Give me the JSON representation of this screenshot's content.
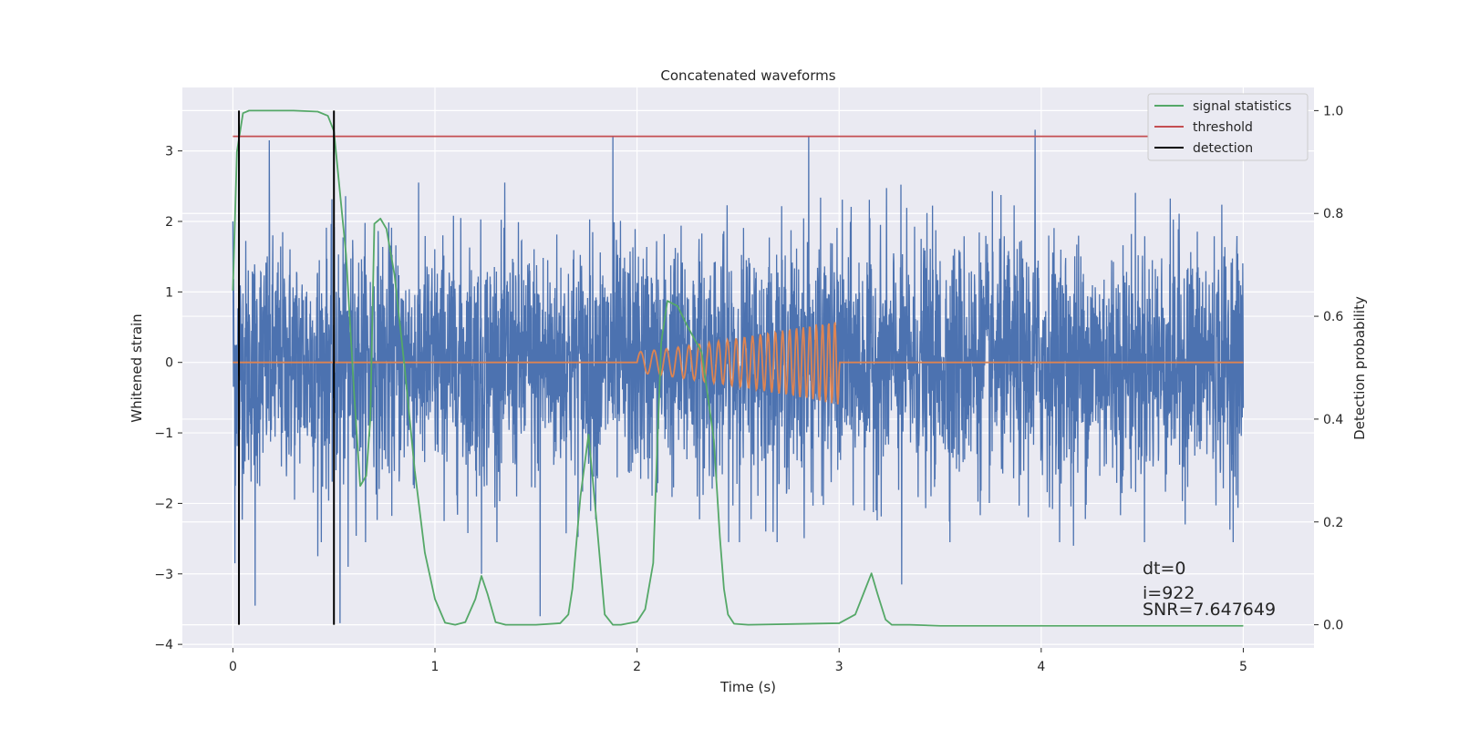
{
  "chart_data": {
    "type": "line",
    "title": "Concatenated waveforms",
    "xlabel": "Time (s)",
    "ylabel": "Whitened strain",
    "ylabel_right": "Detection probability",
    "xlim": [
      -0.25,
      5.35
    ],
    "ylim": [
      -4.05,
      3.9
    ],
    "ylim_right": [
      -0.045,
      1.045
    ],
    "x_ticks": [
      0,
      1,
      2,
      3,
      4,
      5
    ],
    "y_ticks": [
      -4,
      -3,
      -2,
      -1,
      0,
      1,
      2,
      3
    ],
    "y_ticks_right": [
      0.0,
      0.2,
      0.4,
      0.6,
      0.8,
      1.0
    ],
    "x_tick_labels": [
      "0",
      "1",
      "2",
      "3",
      "4",
      "5"
    ],
    "y_tick_labels": [
      "−4",
      "−3",
      "−2",
      "−1",
      "0",
      "1",
      "2",
      "3"
    ],
    "y_tick_labels_right": [
      "0.0",
      "0.2",
      "0.4",
      "0.6",
      "0.8",
      "1.0"
    ],
    "grid": true,
    "legend_position": "top-right",
    "colors": {
      "noise": "#4c72b0",
      "waveform": "#dd8452",
      "signal_statistics": "#55a868",
      "threshold": "#c44e52",
      "detection": "#000000",
      "background": "#eaeaf2"
    },
    "noise": {
      "x_range": [
        0,
        5
      ],
      "typical_amplitude": 1.0,
      "peaks": [
        {
          "x": 0.0,
          "y": 2.0
        },
        {
          "x": 0.01,
          "y": -2.85
        },
        {
          "x": 0.11,
          "y": -3.45
        },
        {
          "x": 0.18,
          "y": 3.15
        },
        {
          "x": 0.42,
          "y": -2.75
        },
        {
          "x": 0.53,
          "y": -3.7
        },
        {
          "x": 0.57,
          "y": -2.9
        },
        {
          "x": 1.23,
          "y": -3.0
        },
        {
          "x": 1.52,
          "y": -3.6
        },
        {
          "x": 1.88,
          "y": 3.2
        },
        {
          "x": 2.85,
          "y": 3.2
        },
        {
          "x": 3.31,
          "y": -3.15
        },
        {
          "x": 3.97,
          "y": 3.3
        },
        {
          "x": 4.16,
          "y": -2.6
        }
      ]
    },
    "waveform": {
      "x_range": [
        2.0,
        3.0
      ],
      "start_amplitude": 0.15,
      "end_amplitude": 0.6,
      "start_frequency_hz": 14,
      "end_frequency_hz": 34
    },
    "signal_statistics": {
      "x": [
        0.0,
        0.02,
        0.05,
        0.08,
        0.12,
        0.3,
        0.42,
        0.47,
        0.5,
        0.52,
        0.56,
        0.6,
        0.63,
        0.66,
        0.68,
        0.7,
        0.73,
        0.76,
        0.8,
        0.85,
        0.9,
        0.95,
        1.0,
        1.05,
        1.1,
        1.15,
        1.2,
        1.23,
        1.26,
        1.3,
        1.35,
        1.5,
        1.62,
        1.66,
        1.68,
        1.72,
        1.76,
        1.8,
        1.84,
        1.88,
        1.92,
        2.0,
        2.04,
        2.08,
        2.1,
        2.12,
        2.15,
        2.2,
        2.25,
        2.32,
        2.38,
        2.41,
        2.43,
        2.45,
        2.48,
        2.55,
        3.0,
        3.08,
        3.13,
        3.16,
        3.19,
        3.23,
        3.26,
        3.35,
        3.5,
        4.0,
        4.5,
        5.0
      ],
      "y": [
        0.65,
        0.92,
        0.995,
        1.0,
        1.0,
        1.0,
        0.998,
        0.99,
        0.96,
        0.88,
        0.72,
        0.45,
        0.27,
        0.29,
        0.4,
        0.78,
        0.79,
        0.77,
        0.68,
        0.5,
        0.3,
        0.14,
        0.05,
        0.004,
        0.0,
        0.005,
        0.05,
        0.095,
        0.06,
        0.005,
        0.0,
        0.0,
        0.003,
        0.02,
        0.07,
        0.25,
        0.37,
        0.2,
        0.02,
        0.0,
        0.0,
        0.006,
        0.03,
        0.12,
        0.35,
        0.55,
        0.63,
        0.62,
        0.58,
        0.53,
        0.36,
        0.17,
        0.07,
        0.02,
        0.002,
        0.0,
        0.003,
        0.02,
        0.07,
        0.1,
        0.06,
        0.01,
        0.0,
        0.0,
        -0.002,
        -0.002,
        -0.002,
        -0.002
      ]
    },
    "threshold": {
      "value": 0.95,
      "x_range": [
        0,
        5
      ]
    },
    "detection": {
      "x": [
        0.03,
        0.5
      ],
      "y_range": [
        0.0,
        1.0
      ]
    },
    "legend": [
      "signal statistics",
      "threshold",
      "detection"
    ],
    "annotations": [
      "dt=0",
      "i=922",
      "SNR=7.647649"
    ]
  }
}
